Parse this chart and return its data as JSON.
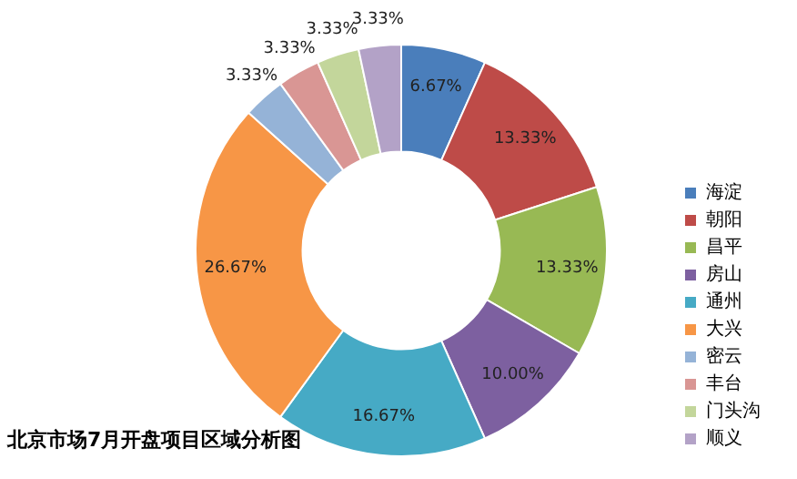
{
  "chart_data": {
    "type": "donut",
    "title": "北京市场7月开盘项目区域分析图",
    "categories": [
      "海淀",
      "朝阳",
      "昌平",
      "房山",
      "通州",
      "大兴",
      "密云",
      "丰台",
      "门头沟",
      "顺义"
    ],
    "values": [
      6.67,
      13.33,
      13.33,
      10.0,
      16.67,
      26.67,
      3.33,
      3.33,
      3.33,
      3.33
    ],
    "value_labels": [
      "6.67%",
      "13.33%",
      "13.33%",
      "10.00%",
      "16.67%",
      "26.67%",
      "3.33%",
      "3.33%",
      "3.33%",
      "3.33%"
    ],
    "colors": [
      "#4a7ebb",
      "#be4b48",
      "#98b954",
      "#7d60a0",
      "#46aac5",
      "#f79646",
      "#95b3d7",
      "#d99694",
      "#c3d69b",
      "#b3a2c7"
    ],
    "legend": "bottom right"
  }
}
